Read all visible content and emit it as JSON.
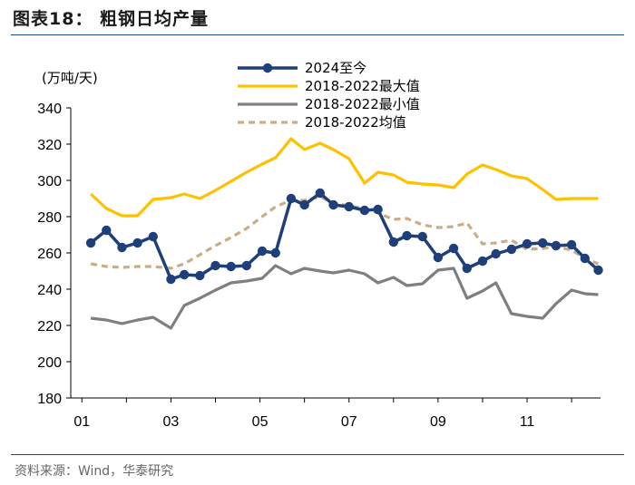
{
  "header": {
    "title": "图表18： 粗钢日均产量",
    "source": "资料来源：Wind，华泰研究"
  },
  "chart_data": {
    "type": "line",
    "title": "",
    "xlabel": "",
    "ylabel": "(万吨/天)",
    "ylim": [
      180,
      340
    ],
    "yticks": [
      180,
      200,
      220,
      240,
      260,
      280,
      300,
      320,
      340
    ],
    "xlim": [
      0.75,
      12.65
    ],
    "xticks": [
      {
        "v": 1,
        "label": "01"
      },
      {
        "v": 3,
        "label": "03"
      },
      {
        "v": 5,
        "label": "05"
      },
      {
        "v": 7,
        "label": "07"
      },
      {
        "v": 9,
        "label": "09"
      },
      {
        "v": 11,
        "label": "11"
      }
    ],
    "grid": false,
    "legend_position": "top-center",
    "series": [
      {
        "name": "2024至今",
        "color": "#1f3f7a",
        "style": "solid-marker",
        "x": [
          1.2,
          1.55,
          1.9,
          2.25,
          2.6,
          3.0,
          3.3,
          3.65,
          4.0,
          4.35,
          4.7,
          5.05,
          5.35,
          5.7,
          6.0,
          6.35,
          6.65,
          7.0,
          7.35,
          7.65,
          8.0,
          8.3,
          8.65,
          9.0,
          9.35,
          9.65,
          10.0,
          10.3,
          10.65,
          11.0,
          11.35,
          11.65,
          12.0,
          12.3,
          12.6
        ],
        "y": [
          265.5,
          272.5,
          263,
          265.5,
          269,
          245.5,
          248,
          247.5,
          253,
          252.5,
          253,
          261,
          260,
          290,
          286.5,
          293,
          286.5,
          285.5,
          283.5,
          284,
          266,
          269.5,
          269,
          257.5,
          262.5,
          251.5,
          255.5,
          259.5,
          262,
          265,
          265.5,
          264,
          264.5,
          257,
          250.5
        ]
      },
      {
        "name": "2018-2022最大值",
        "color": "#ffc000",
        "style": "solid",
        "x": [
          1.2,
          1.55,
          1.9,
          2.25,
          2.6,
          3.0,
          3.3,
          3.65,
          4.0,
          4.35,
          4.7,
          5.05,
          5.35,
          5.7,
          6.0,
          6.35,
          6.65,
          7.0,
          7.35,
          7.65,
          8.0,
          8.3,
          8.65,
          9.0,
          9.35,
          9.65,
          10.0,
          10.3,
          10.65,
          11.0,
          11.35,
          11.65,
          12.0,
          12.3,
          12.6
        ],
        "y": [
          292.5,
          284.5,
          280.5,
          280.5,
          289.5,
          290.5,
          292.5,
          290,
          294.5,
          299.5,
          304.5,
          309,
          312.5,
          323,
          317,
          320.5,
          317,
          312,
          298.5,
          304.5,
          303,
          299,
          298,
          297.5,
          296,
          303.5,
          308.5,
          306,
          302.5,
          301,
          295,
          289.5,
          290,
          290,
          290
        ]
      },
      {
        "name": "2018-2022最小值",
        "color": "#7f7f7f",
        "style": "solid",
        "x": [
          1.2,
          1.55,
          1.9,
          2.25,
          2.6,
          3.0,
          3.3,
          3.65,
          4.0,
          4.35,
          4.7,
          5.05,
          5.35,
          5.7,
          6.0,
          6.35,
          6.65,
          7.0,
          7.35,
          7.65,
          8.0,
          8.3,
          8.65,
          9.0,
          9.35,
          9.65,
          10.0,
          10.3,
          10.65,
          11.0,
          11.35,
          11.65,
          12.0,
          12.3,
          12.6
        ],
        "y": [
          224,
          223,
          221,
          223,
          224.5,
          218.5,
          231,
          235,
          239.5,
          243.5,
          244.5,
          246,
          253,
          248.5,
          251.5,
          250,
          249,
          250.5,
          248.5,
          243.5,
          246.5,
          242,
          243,
          250.5,
          251.5,
          235,
          239,
          243.5,
          226.5,
          225,
          224,
          232,
          239.5,
          237.5,
          237
        ]
      },
      {
        "name": "2018-2022均值",
        "color": "#c9ad86",
        "style": "dashed",
        "x": [
          1.2,
          1.55,
          1.9,
          2.25,
          2.6,
          3.0,
          3.3,
          3.65,
          4.0,
          4.35,
          4.7,
          5.05,
          5.35,
          5.7,
          6.0,
          6.35,
          6.65,
          7.0,
          7.35,
          7.65,
          8.0,
          8.3,
          8.65,
          9.0,
          9.35,
          9.65,
          10.0,
          10.3,
          10.65,
          11.0,
          11.35,
          11.65,
          12.0,
          12.3,
          12.6
        ],
        "y": [
          254,
          252.5,
          252,
          252.5,
          252.5,
          251.5,
          254,
          259,
          264,
          268.5,
          273.5,
          280,
          285.5,
          289,
          289,
          291,
          287.5,
          286,
          284.5,
          282,
          278.5,
          279,
          275.5,
          274,
          274.5,
          276.5,
          265,
          265.5,
          267,
          262,
          262.5,
          263.5,
          261.5,
          257,
          254
        ]
      }
    ]
  }
}
